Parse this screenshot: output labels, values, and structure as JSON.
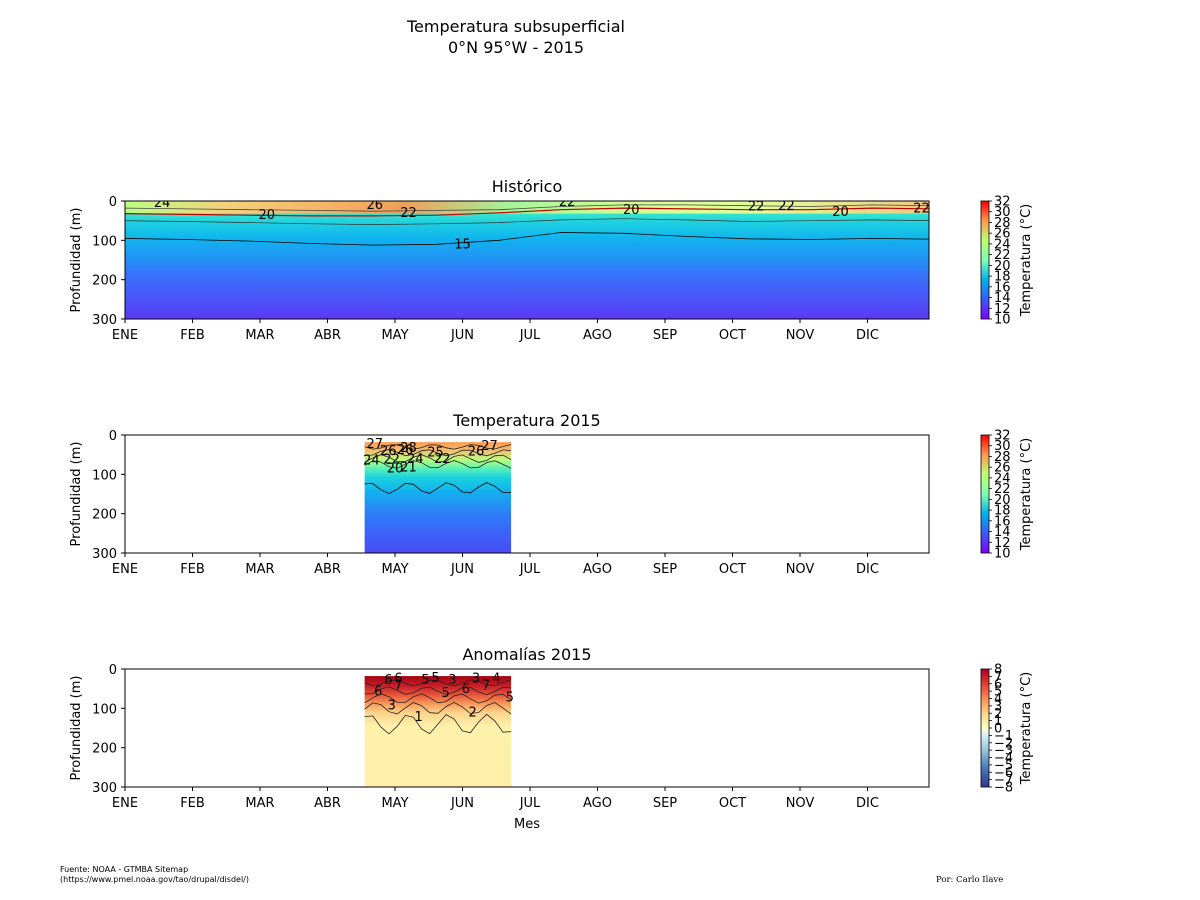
{
  "title_line1": "Temperatura subsuperficial",
  "title_line2": "0°N 95°W - 2015",
  "source_line1": "Fuente: NOAA - GTMBA Sitemap",
  "source_line2": "(https://www.pmel.noaa.gov/tao/drupal/disdel/)",
  "author": "Por: Carlo Ilave",
  "chart_data": [
    {
      "type": "heatmap",
      "title": "Histórico",
      "ylabel": "Profundidad (m)",
      "xlabel": "",
      "months": [
        "ENE",
        "FEB",
        "MAR",
        "ABR",
        "MAY",
        "JUN",
        "JUL",
        "AGO",
        "SEP",
        "OCT",
        "NOV",
        "DIC"
      ],
      "ylim": [
        300,
        0
      ],
      "yticks": [
        0,
        100,
        200,
        300
      ],
      "data_range": [
        "ENE",
        "DIC"
      ],
      "colorbar": {
        "label": "Temperatura (°C)",
        "ticks": [
          32,
          30,
          28,
          26,
          24,
          22,
          20,
          18,
          16,
          14,
          12,
          10
        ],
        "range": [
          10,
          32
        ],
        "colormap": "rainbow"
      },
      "contour_labels": [
        {
          "text": "24",
          "month": 0.55,
          "depth": 2
        },
        {
          "text": "20",
          "month": 2.1,
          "depth": 33
        },
        {
          "text": "26",
          "month": 3.7,
          "depth": 8
        },
        {
          "text": "22",
          "month": 4.2,
          "depth": 28
        },
        {
          "text": "15",
          "month": 5.0,
          "depth": 108
        },
        {
          "text": "22",
          "month": 6.55,
          "depth": 0
        },
        {
          "text": "20",
          "month": 7.5,
          "depth": 20
        },
        {
          "text": "22",
          "month": 9.35,
          "depth": 12
        },
        {
          "text": "22",
          "month": 9.8,
          "depth": 10
        },
        {
          "text": "20",
          "month": 10.6,
          "depth": 26
        },
        {
          "text": "22",
          "month": 11.8,
          "depth": 17
        }
      ]
    },
    {
      "type": "heatmap",
      "title": "Temperatura 2015",
      "ylabel": "Profundidad (m)",
      "xlabel": "",
      "months": [
        "ENE",
        "FEB",
        "MAR",
        "ABR",
        "MAY",
        "JUN",
        "JUL",
        "AGO",
        "SEP",
        "OCT",
        "NOV",
        "DIC"
      ],
      "ylim": [
        300,
        0
      ],
      "yticks": [
        0,
        100,
        200,
        300
      ],
      "data_range": [
        "ABR",
        "JUN"
      ],
      "colorbar": {
        "label": "Temperatura (°C)",
        "ticks": [
          32,
          30,
          28,
          26,
          24,
          22,
          20,
          18,
          16,
          14,
          12,
          10
        ],
        "range": [
          10,
          32
        ],
        "colormap": "rainbow"
      },
      "contour_labels": [
        {
          "text": "27",
          "month": 3.7,
          "depth": 20
        },
        {
          "text": "26",
          "month": 3.9,
          "depth": 38
        },
        {
          "text": "26",
          "month": 4.15,
          "depth": 35
        },
        {
          "text": "28",
          "month": 4.2,
          "depth": 30
        },
        {
          "text": "24",
          "month": 3.65,
          "depth": 62
        },
        {
          "text": "22",
          "month": 3.95,
          "depth": 60
        },
        {
          "text": "20",
          "month": 4.0,
          "depth": 82
        },
        {
          "text": "21",
          "month": 4.2,
          "depth": 80
        },
        {
          "text": "24",
          "month": 4.3,
          "depth": 58
        },
        {
          "text": "25",
          "month": 4.6,
          "depth": 42
        },
        {
          "text": "22",
          "month": 4.7,
          "depth": 58
        },
        {
          "text": "26",
          "month": 5.2,
          "depth": 40
        },
        {
          "text": "27",
          "month": 5.4,
          "depth": 25
        }
      ]
    },
    {
      "type": "heatmap",
      "title": "Anomalías 2015",
      "ylabel": "Profundidad (m)",
      "xlabel": "Mes",
      "months": [
        "ENE",
        "FEB",
        "MAR",
        "ABR",
        "MAY",
        "JUN",
        "JUL",
        "AGO",
        "SEP",
        "OCT",
        "NOV",
        "DIC"
      ],
      "ylim": [
        300,
        0
      ],
      "yticks": [
        0,
        100,
        200,
        300
      ],
      "data_range": [
        "ABR",
        "JUN"
      ],
      "colorbar": {
        "label": "Temperatura (°C)",
        "ticks": [
          "8",
          "7",
          "6",
          "5",
          "4",
          "3",
          "2",
          "1",
          "0",
          "−1",
          "−2",
          "−3",
          "−4",
          "−5",
          "−6",
          "−7",
          "−8"
        ],
        "range": [
          -8,
          8
        ],
        "colormap": "RdYlBu_r"
      },
      "contour_labels": [
        {
          "text": "6",
          "month": 3.9,
          "depth": 25
        },
        {
          "text": "6",
          "month": 4.05,
          "depth": 22
        },
        {
          "text": "5",
          "month": 4.45,
          "depth": 25
        },
        {
          "text": "5",
          "month": 4.6,
          "depth": 20
        },
        {
          "text": "3",
          "month": 4.85,
          "depth": 25
        },
        {
          "text": "3",
          "month": 5.2,
          "depth": 22
        },
        {
          "text": "4",
          "month": 5.5,
          "depth": 22
        },
        {
          "text": "6",
          "month": 3.75,
          "depth": 55
        },
        {
          "text": "7",
          "month": 4.05,
          "depth": 40
        },
        {
          "text": "5",
          "month": 4.75,
          "depth": 58
        },
        {
          "text": "6",
          "month": 5.05,
          "depth": 48
        },
        {
          "text": "7",
          "month": 5.35,
          "depth": 40
        },
        {
          "text": "5",
          "month": 5.7,
          "depth": 70
        },
        {
          "text": "3",
          "month": 3.95,
          "depth": 90
        },
        {
          "text": "1",
          "month": 4.35,
          "depth": 120
        },
        {
          "text": "2",
          "month": 5.15,
          "depth": 108
        }
      ]
    }
  ]
}
